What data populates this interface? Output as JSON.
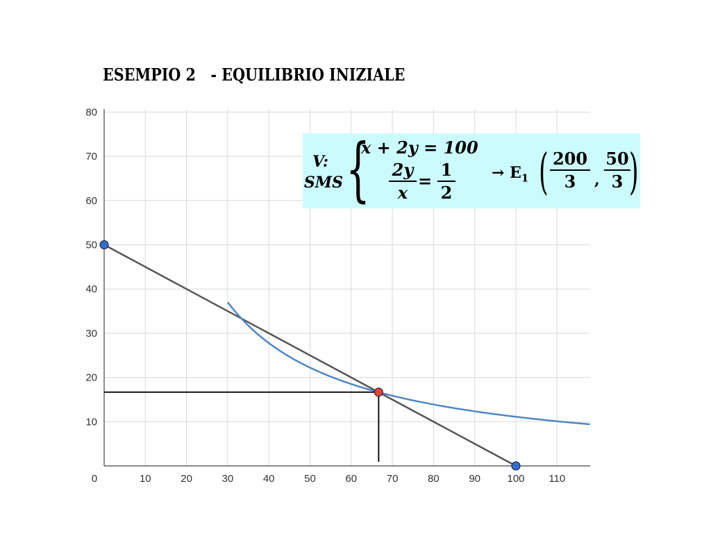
{
  "title": "ESEMPIO 2   - EQUILIBRIO INIZIALE",
  "equation": {
    "v_label": "V:",
    "sms_label": "SMS",
    "line1": "x + 2y = 100",
    "frac1_num": "2y",
    "frac1_den": "x",
    "equals": "=",
    "frac2_num": "1",
    "frac2_den": "2",
    "arrow_label": "→ E",
    "subscript": "1",
    "frac3_num": "200",
    "frac3_den": "3",
    "comma": ",",
    "frac4_num": "50",
    "frac4_den": "3",
    "box_color": "#ccfbfd"
  },
  "chart_data": {
    "type": "line",
    "title": "",
    "xlabel": "",
    "ylabel": "",
    "xlim": [
      0,
      118
    ],
    "ylim": [
      0,
      80
    ],
    "grid": true,
    "x_ticks": [
      0,
      10,
      20,
      30,
      40,
      50,
      60,
      70,
      80,
      90,
      100,
      110
    ],
    "y_ticks": [
      10,
      20,
      30,
      40,
      50,
      60,
      70,
      80
    ],
    "series": [
      {
        "kind": "budget-line",
        "color": "#555555",
        "points": [
          [
            0,
            50
          ],
          [
            100,
            0
          ]
        ]
      },
      {
        "kind": "indifference-curve",
        "color": "#4f86c6",
        "equation": "x*y = 1111.11",
        "x_range": [
          30,
          118
        ]
      }
    ],
    "points": [
      {
        "x": 0,
        "y": 50,
        "color": "#2f6fd1"
      },
      {
        "x": 100,
        "y": 0,
        "color": "#2f6fd1"
      },
      {
        "x": 66.67,
        "y": 16.67,
        "color": "#e0413a"
      }
    ],
    "guides": [
      {
        "from": [
          0,
          16.67
        ],
        "to": [
          66.67,
          16.67
        ]
      },
      {
        "from": [
          66.67,
          16.67
        ],
        "to": [
          66.67,
          0
        ]
      }
    ]
  }
}
